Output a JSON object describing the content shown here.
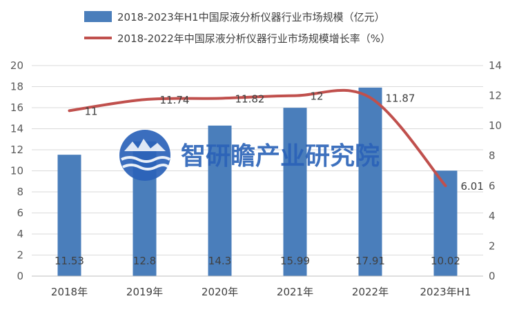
{
  "chart_data": {
    "type": "bar",
    "categories": [
      "2018年",
      "2019年",
      "2020年",
      "2021年",
      "2022年",
      "2023年H1"
    ],
    "series": [
      {
        "name": "2018-2023年H1中国尿液分析仪器行业市场规模（亿元）",
        "type": "bar",
        "axis": "left",
        "color": "#4a7ebb",
        "values": [
          11.53,
          12.8,
          14.3,
          15.99,
          17.91,
          10.02
        ],
        "labels": [
          "11.53",
          "12.8",
          "14.3",
          "15.99",
          "17.91",
          "10.02"
        ]
      },
      {
        "name": "2018-2022年中国尿液分析仪器行业市场规模增长率（%）",
        "type": "line",
        "axis": "right",
        "color": "#c0504d",
        "values": [
          11,
          11.74,
          11.82,
          12,
          11.87,
          6.01
        ],
        "labels": [
          "11",
          "11.74",
          "11.82",
          "12",
          "11.87",
          "6.01"
        ]
      }
    ],
    "y_left": {
      "min": 0,
      "max": 20,
      "ticks": [
        "0",
        "2",
        "4",
        "6",
        "8",
        "10",
        "12",
        "14",
        "16",
        "18",
        "20"
      ]
    },
    "y_right": {
      "min": 0,
      "max": 14,
      "ticks": [
        "0",
        "2",
        "4",
        "6",
        "8",
        "10",
        "12",
        "14"
      ]
    },
    "grid": true,
    "legend_position": "top"
  },
  "watermark": {
    "text": "智研瞻产业研究院",
    "icon": "globe-waves-logo-icon"
  }
}
